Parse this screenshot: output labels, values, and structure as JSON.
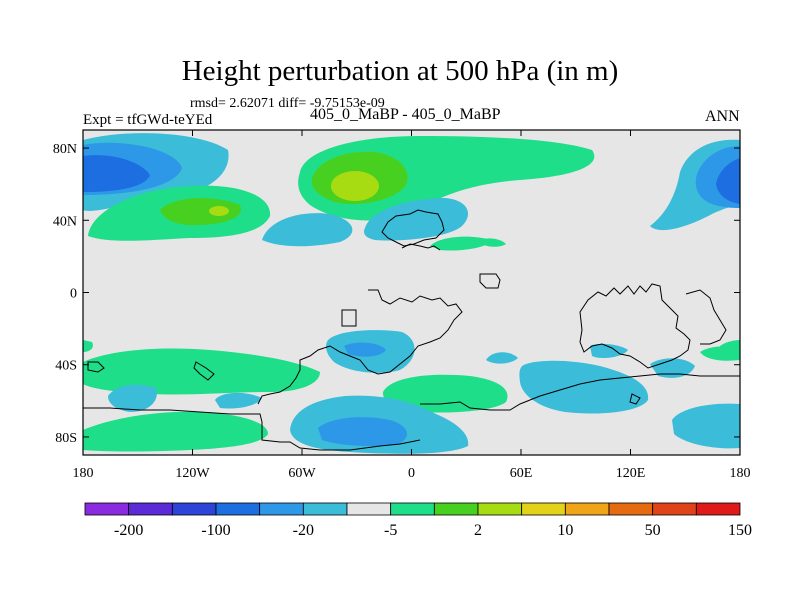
{
  "title": "Height perturbation at 500 hPa (in m)",
  "stats": "rmsd= 2.62071 diff= -9.75153e-09",
  "expt_label": "Expt = tfGWd-teYEd",
  "comparison": "405_0_MaBP - 405_0_MaBP",
  "season": "ANN",
  "map": {
    "lon_range": [
      -180,
      180
    ],
    "lat_range": [
      -90,
      90
    ],
    "x_ticks": [
      {
        "value": -180,
        "label": "180"
      },
      {
        "value": -120,
        "label": "120W"
      },
      {
        "value": -60,
        "label": "60W"
      },
      {
        "value": 0,
        "label": "0"
      },
      {
        "value": 60,
        "label": "60E"
      },
      {
        "value": 120,
        "label": "120E"
      },
      {
        "value": 180,
        "label": "180"
      }
    ],
    "y_ticks": [
      {
        "value": 80,
        "label": "80N"
      },
      {
        "value": 40,
        "label": "40N"
      },
      {
        "value": 0,
        "label": "0"
      },
      {
        "value": -40,
        "label": "40S"
      },
      {
        "value": -80,
        "label": "80S"
      }
    ],
    "background_color": "#e6e6e6"
  },
  "colorbar": {
    "colors": [
      "#8a2be2",
      "#5b2bd8",
      "#2c45d8",
      "#1d6ee0",
      "#2e98e8",
      "#3bbcd8",
      "#e6e6e6",
      "#1ede8a",
      "#48d020",
      "#a8dc12",
      "#e2d21a",
      "#f0a418",
      "#e66a10",
      "#e0421a",
      "#e01a18"
    ],
    "labels": [
      "-200",
      "-100",
      "-20",
      "-5",
      "2",
      "10",
      "50",
      "150"
    ]
  }
}
